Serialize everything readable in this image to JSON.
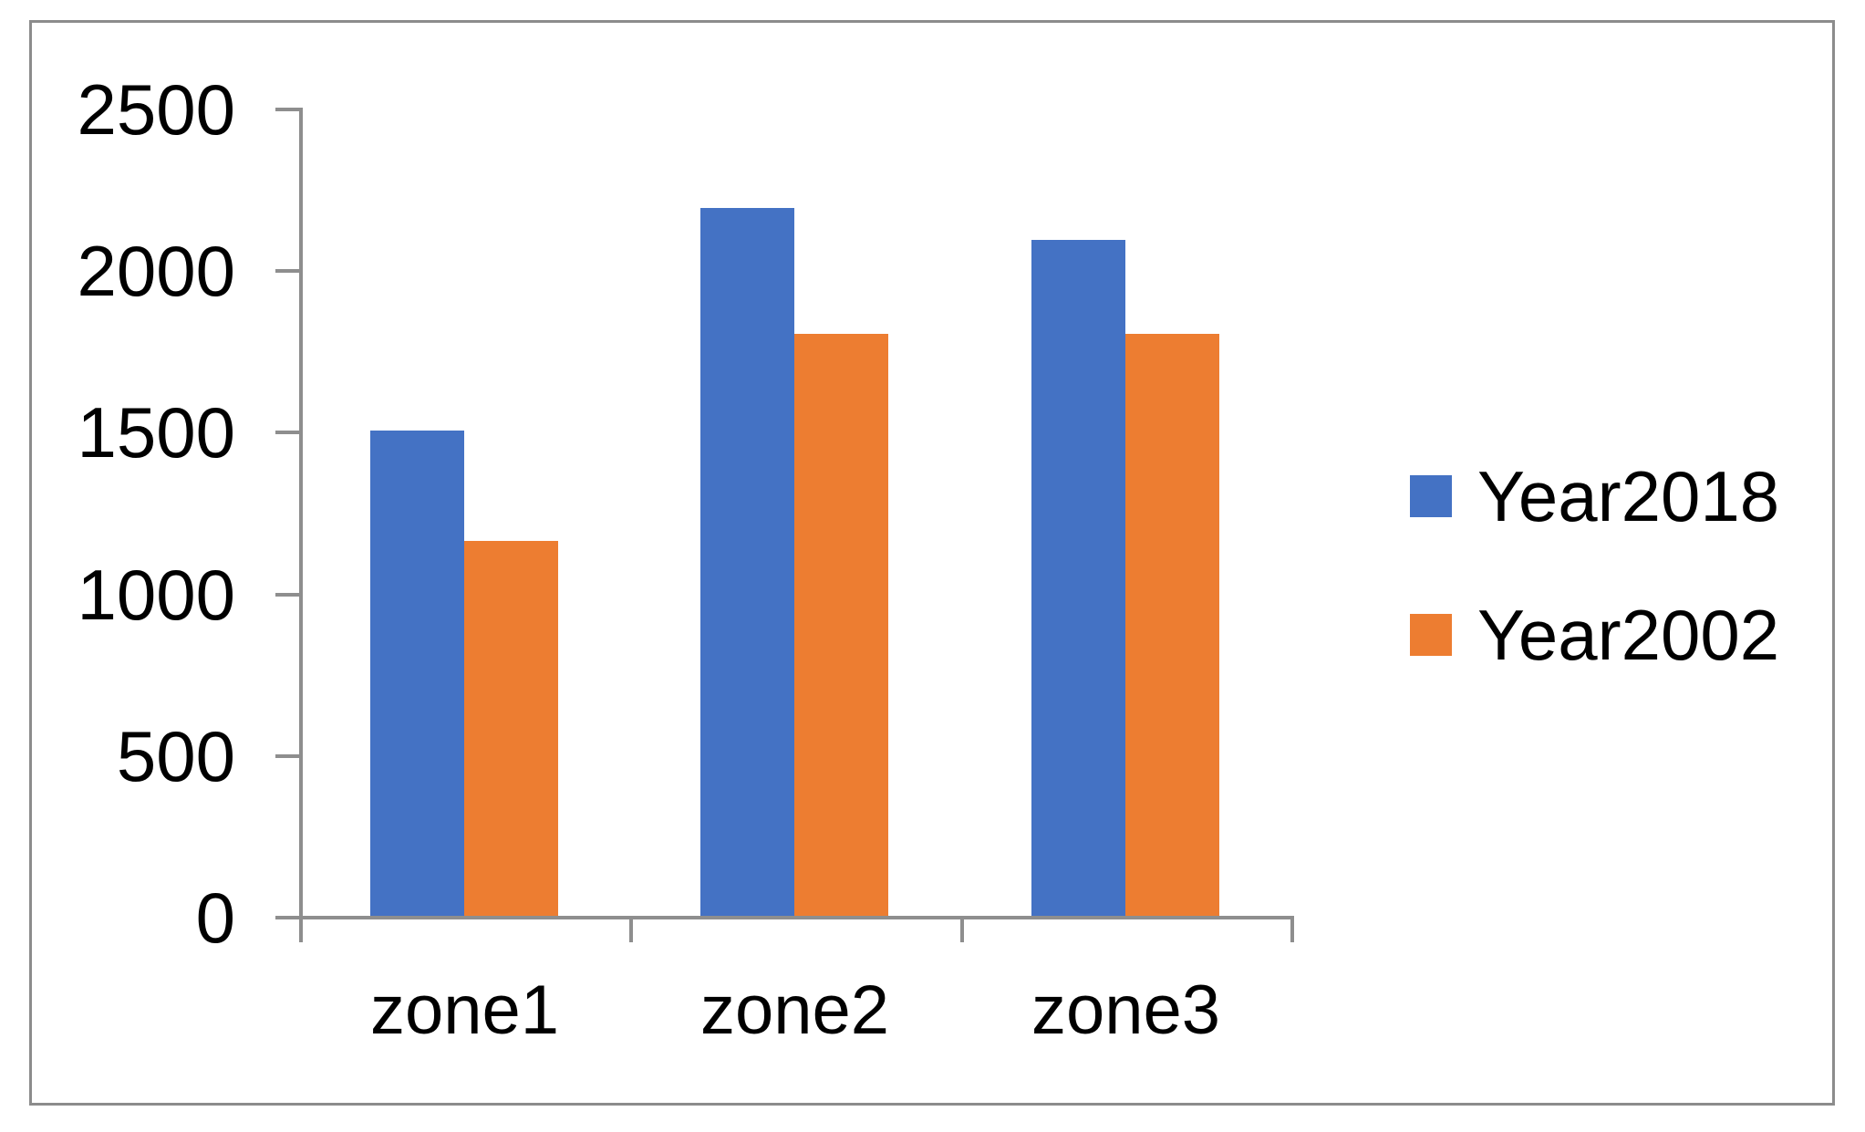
{
  "chart_data": {
    "type": "bar",
    "categories": [
      "zone1",
      "zone2",
      "zone3"
    ],
    "series": [
      {
        "name": "Year2018",
        "color": "#4472C4",
        "values": [
          1500,
          2190,
          2090
        ]
      },
      {
        "name": "Year2002",
        "color": "#ED7D31",
        "values": [
          1160,
          1800,
          1800
        ]
      }
    ],
    "title": "",
    "xlabel": "",
    "ylabel": "",
    "ylim": [
      0,
      2500
    ],
    "ytick_step": 500,
    "yticks": [
      0,
      500,
      1000,
      1500,
      2000,
      2500
    ],
    "grid": false,
    "legend_position": "right",
    "axis_color": "#8E8E8E",
    "border_color": "#8C8C8C",
    "text_color": "#000000",
    "background": "#FFFFFF"
  }
}
